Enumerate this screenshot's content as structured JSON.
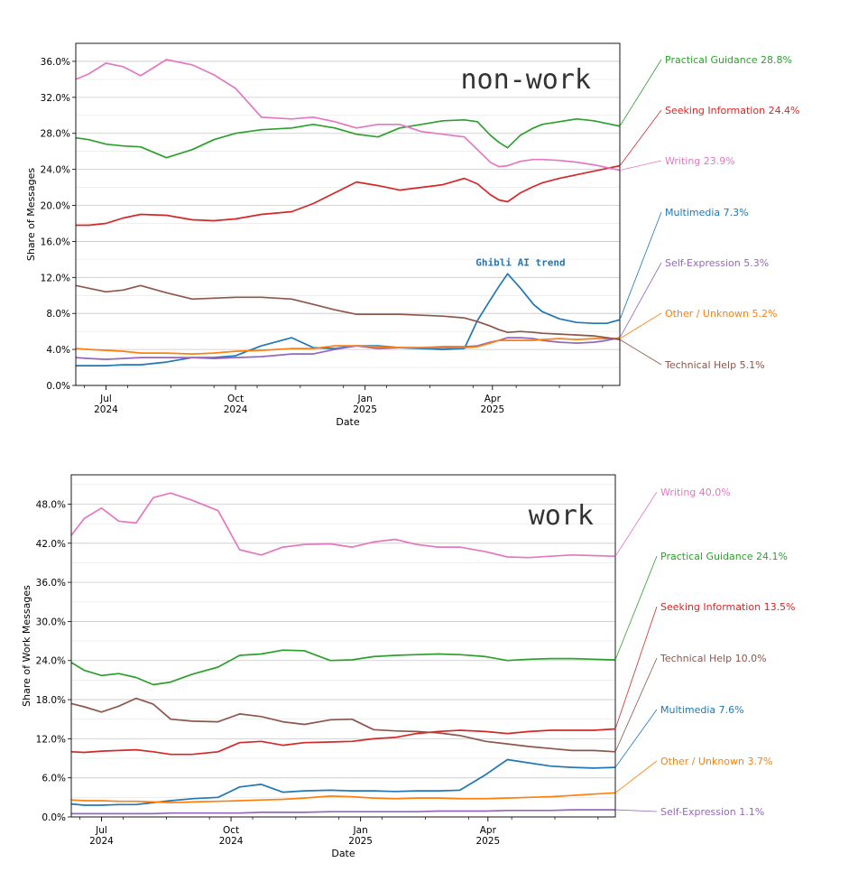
{
  "chart_data": [
    {
      "type": "line",
      "title": "non-work",
      "xlabel": "Date",
      "ylabel": "Share of Messages",
      "ylim": [
        0,
        38
      ],
      "yticks": [
        "0.0%",
        "4.0%",
        "8.0%",
        "12.0%",
        "16.0%",
        "20.0%",
        "24.0%",
        "28.0%",
        "32.0%",
        "36.0%"
      ],
      "ytick_values": [
        0,
        4,
        8,
        12,
        16,
        20,
        24,
        28,
        32,
        36
      ],
      "xlim": [
        0,
        12.6
      ],
      "xticks": [
        {
          "month": "Jul",
          "year": "2024",
          "at": 0.7
        },
        {
          "month": "Oct",
          "year": "2024",
          "at": 3.7
        },
        {
          "month": "Jan",
          "year": "2025",
          "at": 6.7
        },
        {
          "month": "Apr",
          "year": "2025",
          "at": 9.65
        }
      ],
      "grid": true,
      "annotation": {
        "text": "Ghibli AI trend",
        "x": 10.3,
        "y": 13.3
      },
      "x": [
        0.0,
        0.3,
        0.7,
        1.1,
        1.5,
        2.1,
        2.7,
        3.2,
        3.7,
        4.3,
        5.0,
        5.5,
        6.0,
        6.5,
        7.0,
        7.5,
        8.0,
        8.5,
        9.0,
        9.3,
        9.6,
        9.8,
        10.0,
        10.3,
        10.6,
        10.8,
        11.2,
        11.6,
        12.0,
        12.3,
        12.6
      ],
      "series": [
        {
          "name": "Practical Guidance",
          "label": "Practical Guidance  28.8%",
          "color": "#2ca02c",
          "values": [
            27.5,
            27.3,
            26.8,
            26.6,
            26.5,
            25.3,
            26.2,
            27.3,
            28.0,
            28.4,
            28.6,
            29.0,
            28.6,
            27.9,
            27.6,
            28.6,
            29.0,
            29.4,
            29.5,
            29.3,
            27.8,
            27.0,
            26.4,
            27.8,
            28.6,
            29.0,
            29.3,
            29.6,
            29.4,
            29.1,
            28.8
          ]
        },
        {
          "name": "Seeking Information",
          "label": "Seeking Information  24.4%",
          "color": "#d62728",
          "values": [
            17.8,
            17.8,
            18.0,
            18.6,
            19.0,
            18.9,
            18.4,
            18.3,
            18.5,
            19.0,
            19.3,
            20.2,
            21.4,
            22.6,
            22.2,
            21.7,
            22.0,
            22.3,
            23.0,
            22.4,
            21.2,
            20.6,
            20.4,
            21.4,
            22.1,
            22.5,
            23.0,
            23.4,
            23.8,
            24.1,
            24.4
          ]
        },
        {
          "name": "Writing",
          "label": "Writing  23.9%",
          "color": "#e377c2",
          "values": [
            34.0,
            34.6,
            35.8,
            35.4,
            34.4,
            36.2,
            35.6,
            34.5,
            33.0,
            29.8,
            29.6,
            29.8,
            29.3,
            28.6,
            29.0,
            29.0,
            28.2,
            27.9,
            27.6,
            26.2,
            24.8,
            24.3,
            24.4,
            24.9,
            25.1,
            25.1,
            25.0,
            24.8,
            24.5,
            24.2,
            23.9
          ]
        },
        {
          "name": "Multimedia",
          "label": "Multimedia  7.3%",
          "color": "#1f77b4",
          "values": [
            2.2,
            2.2,
            2.2,
            2.3,
            2.3,
            2.6,
            3.1,
            3.1,
            3.3,
            4.4,
            5.3,
            4.2,
            4.1,
            4.4,
            4.4,
            4.2,
            4.1,
            4.0,
            4.1,
            7.2,
            9.5,
            11.0,
            12.4,
            10.8,
            9.0,
            8.2,
            7.4,
            7.0,
            6.9,
            6.9,
            7.3
          ]
        },
        {
          "name": "Self-Expression",
          "label": "Self-Expression  5.3%",
          "color": "#9467bd",
          "values": [
            3.1,
            3.0,
            2.9,
            3.0,
            3.1,
            3.1,
            3.1,
            3.0,
            3.1,
            3.2,
            3.5,
            3.5,
            4.0,
            4.4,
            4.1,
            4.2,
            4.2,
            4.3,
            4.3,
            4.4,
            4.8,
            5.0,
            5.3,
            5.3,
            5.2,
            5.0,
            4.8,
            4.7,
            4.8,
            5.0,
            5.3
          ]
        },
        {
          "name": "Other / Unknown",
          "label": "Other / Unknown  5.2%",
          "color": "#ff7f0e",
          "values": [
            4.1,
            4.0,
            3.9,
            3.8,
            3.6,
            3.6,
            3.5,
            3.6,
            3.8,
            3.9,
            4.1,
            4.1,
            4.4,
            4.4,
            4.3,
            4.2,
            4.2,
            4.2,
            4.2,
            4.3,
            4.7,
            5.0,
            5.0,
            5.0,
            5.0,
            5.1,
            5.2,
            5.1,
            5.2,
            5.2,
            5.2
          ]
        },
        {
          "name": "Technical Help",
          "label": "Technical Help  5.1%",
          "color": "#8c564b",
          "values": [
            11.1,
            10.8,
            10.4,
            10.6,
            11.1,
            10.3,
            9.6,
            9.7,
            9.8,
            9.8,
            9.6,
            9.0,
            8.4,
            7.9,
            7.9,
            7.9,
            7.8,
            7.7,
            7.5,
            7.1,
            6.6,
            6.2,
            5.9,
            6.0,
            5.9,
            5.8,
            5.7,
            5.6,
            5.5,
            5.3,
            5.1
          ]
        }
      ]
    },
    {
      "type": "line",
      "title": "work",
      "xlabel": "Date",
      "ylabel": "Share of Work Messages",
      "ylim": [
        0,
        52.5
      ],
      "yticks": [
        "0.0%",
        "6.0%",
        "12.0%",
        "18.0%",
        "24.0%",
        "30.0%",
        "36.0%",
        "42.0%",
        "48.0%"
      ],
      "ytick_values": [
        0,
        6,
        12,
        18,
        24,
        30,
        36,
        42,
        48
      ],
      "xlim": [
        0,
        12.6
      ],
      "xticks": [
        {
          "month": "Jul",
          "year": "2024",
          "at": 0.7
        },
        {
          "month": "Oct",
          "year": "2024",
          "at": 3.7
        },
        {
          "month": "Jan",
          "year": "2025",
          "at": 6.7
        },
        {
          "month": "Apr",
          "year": "2025",
          "at": 9.65
        }
      ],
      "grid": true,
      "x": [
        0.0,
        0.3,
        0.7,
        1.1,
        1.5,
        1.9,
        2.3,
        2.8,
        3.4,
        3.9,
        4.4,
        4.9,
        5.4,
        6.0,
        6.5,
        7.0,
        7.5,
        8.0,
        8.5,
        9.0,
        9.6,
        10.1,
        10.6,
        11.1,
        11.6,
        12.1,
        12.6
      ],
      "series": [
        {
          "name": "Writing",
          "label": "Writing  40.0%",
          "color": "#e377c2",
          "values": [
            43.2,
            45.8,
            47.4,
            45.4,
            45.1,
            49.0,
            49.7,
            48.6,
            47.0,
            41.0,
            40.2,
            41.4,
            41.8,
            41.9,
            41.4,
            42.2,
            42.6,
            41.8,
            41.4,
            41.4,
            40.7,
            39.9,
            39.8,
            40.0,
            40.2,
            40.1,
            40.0
          ]
        },
        {
          "name": "Practical Guidance",
          "label": "Practical Guidance  24.1%",
          "color": "#2ca02c",
          "values": [
            23.7,
            22.5,
            21.7,
            22.0,
            21.4,
            20.3,
            20.7,
            21.9,
            23.0,
            24.8,
            25.0,
            25.6,
            25.5,
            24.0,
            24.1,
            24.6,
            24.8,
            24.9,
            25.0,
            24.9,
            24.6,
            24.0,
            24.2,
            24.3,
            24.3,
            24.2,
            24.1
          ]
        },
        {
          "name": "Seeking Information",
          "label": "Seeking Information  13.5%",
          "color": "#d62728",
          "values": [
            10.0,
            9.9,
            10.1,
            10.2,
            10.3,
            10.0,
            9.6,
            9.6,
            10.0,
            11.4,
            11.6,
            11.0,
            11.4,
            11.5,
            11.6,
            12.0,
            12.2,
            12.8,
            13.1,
            13.3,
            13.1,
            12.8,
            13.1,
            13.3,
            13.3,
            13.3,
            13.5
          ]
        },
        {
          "name": "Technical Help",
          "label": "Technical Help  10.0%",
          "color": "#8c564b",
          "values": [
            17.4,
            16.9,
            16.1,
            17.0,
            18.2,
            17.3,
            15.0,
            14.7,
            14.6,
            15.8,
            15.4,
            14.6,
            14.2,
            14.9,
            15.0,
            13.4,
            13.2,
            13.1,
            12.9,
            12.5,
            11.6,
            11.2,
            10.8,
            10.5,
            10.2,
            10.2,
            10.0
          ]
        },
        {
          "name": "Multimedia",
          "label": "Multimedia  7.6%",
          "color": "#1f77b4",
          "values": [
            2.0,
            1.8,
            1.8,
            1.9,
            1.9,
            2.2,
            2.5,
            2.8,
            3.0,
            4.6,
            5.0,
            3.8,
            4.0,
            4.1,
            4.0,
            4.0,
            3.9,
            4.0,
            4.0,
            4.1,
            6.5,
            8.8,
            8.3,
            7.8,
            7.6,
            7.5,
            7.6
          ]
        },
        {
          "name": "Other / Unknown",
          "label": "Other / Unknown  3.7%",
          "color": "#ff7f0e",
          "values": [
            2.6,
            2.5,
            2.5,
            2.4,
            2.4,
            2.3,
            2.2,
            2.3,
            2.4,
            2.5,
            2.6,
            2.7,
            2.9,
            3.2,
            3.1,
            2.9,
            2.8,
            2.9,
            2.9,
            2.8,
            2.8,
            2.9,
            3.0,
            3.1,
            3.3,
            3.5,
            3.7
          ]
        },
        {
          "name": "Self-Expression",
          "label": "Self-Expression  1.1%",
          "color": "#9467bd",
          "values": [
            0.5,
            0.5,
            0.5,
            0.5,
            0.5,
            0.5,
            0.6,
            0.6,
            0.6,
            0.6,
            0.7,
            0.7,
            0.7,
            0.8,
            0.8,
            0.8,
            0.8,
            0.8,
            0.9,
            0.9,
            0.9,
            1.0,
            1.0,
            1.0,
            1.1,
            1.1,
            1.1
          ]
        }
      ]
    }
  ]
}
